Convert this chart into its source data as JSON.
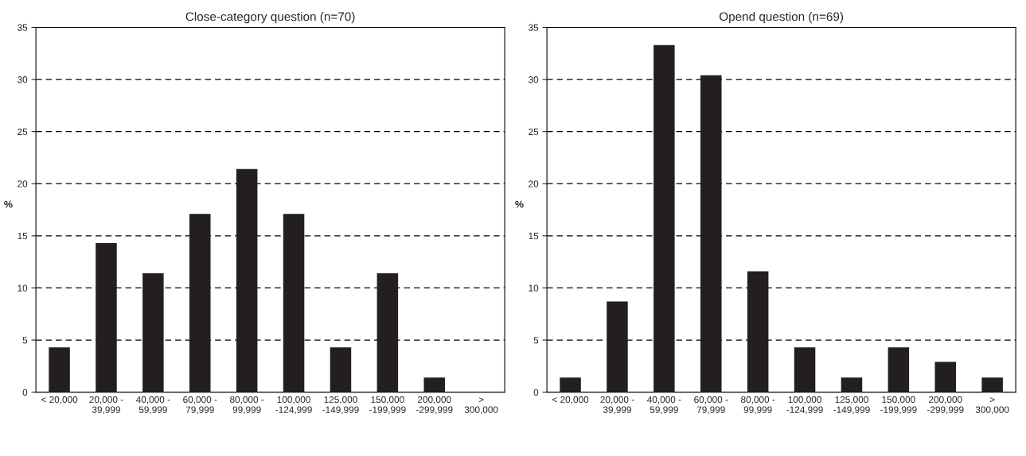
{
  "chart_data": [
    {
      "type": "bar",
      "title": "Close-category question (n=70)",
      "ylabel": "%",
      "categories": [
        "< 20,000",
        "20,000 -\n39,999",
        "40,000 -\n59,999",
        "60,000 -\n79,999",
        "80,000 -\n99,999",
        "100,000\n-124,999",
        "125,000\n-149,999",
        "150,000\n-199,999",
        "200,000\n-299,999",
        ">\n300,000"
      ],
      "values": [
        4.3,
        14.3,
        11.4,
        17.1,
        21.4,
        17.1,
        4.3,
        11.4,
        1.4,
        null
      ],
      "color": "#231f20",
      "ylim": [
        0,
        35
      ],
      "yticks": [
        0,
        5,
        10,
        15,
        20,
        25,
        30,
        35
      ],
      "grid": "y"
    },
    {
      "type": "bar",
      "title": "Opend question (n=69)",
      "ylabel": "%",
      "categories": [
        "< 20,000",
        "20,000 -\n39,999",
        "40,000 -\n59,999",
        "60,000 -\n79,999",
        "80,000 -\n99,999",
        "100,000\n-124,999",
        "125,000\n-149,999",
        "150,000\n-199,999",
        "200,000\n-299,999",
        ">\n300,000"
      ],
      "values": [
        1.4,
        8.7,
        33.3,
        30.4,
        11.6,
        4.3,
        1.4,
        4.3,
        2.9,
        1.4
      ],
      "color": "#231f20",
      "ylim": [
        0,
        35
      ],
      "yticks": [
        0,
        5,
        10,
        15,
        20,
        25,
        30,
        35
      ],
      "grid": "y"
    }
  ]
}
